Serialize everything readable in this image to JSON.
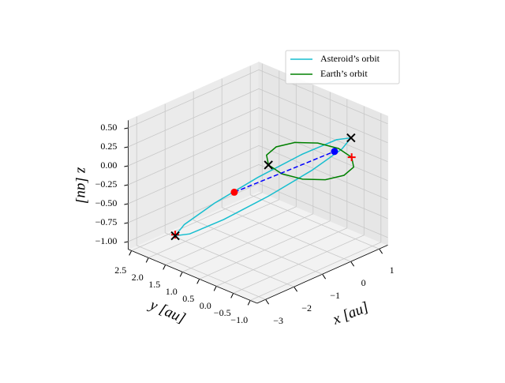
{
  "chart_data": {
    "type": "line3d",
    "xlabel": "x [au]",
    "ylabel": "y [au]",
    "zlabel": "z [au]",
    "xlim": [
      -3.3,
      1.3
    ],
    "ylim": [
      -1.2,
      2.6
    ],
    "zlim": [
      -1.1,
      0.6
    ],
    "xticks": [
      {
        "value": -3,
        "label": "−3"
      },
      {
        "value": -2,
        "label": "−2"
      },
      {
        "value": -1,
        "label": "−1"
      },
      0,
      1
    ],
    "yticks": [
      2.5,
      {
        "value": 2.0,
        "label": "2.0"
      },
      1.5,
      {
        "value": 1.0,
        "label": "1.0"
      },
      0.5,
      {
        "value": 0.0,
        "label": "0.0"
      },
      {
        "value": -0.5,
        "label": "−0.5"
      },
      {
        "value": -1.0,
        "label": "−1.0"
      }
    ],
    "zticks": [
      {
        "value": 0.5,
        "label": "0.50"
      },
      0.25,
      {
        "value": 0.0,
        "label": "0.00"
      },
      {
        "value": -0.25,
        "label": "−0.25"
      },
      {
        "value": -0.5,
        "label": "−0.50"
      },
      {
        "value": -0.75,
        "label": "−0.75"
      },
      {
        "value": -1.0,
        "label": "−1.00"
      }
    ],
    "grid": true,
    "legend": "upper right",
    "series": [
      {
        "name": "Asteroid’s orbit",
        "color": "#17becf",
        "x": [
          0.58,
          0.876,
          0.715,
          0.14,
          -0.695,
          -1.566,
          -2.24,
          -2.536,
          -2.375,
          -1.8,
          -0.965,
          -0.094
        ],
        "y": [
          -0.72,
          -0.046,
          0.825,
          1.66,
          2.235,
          2.396,
          2.1,
          1.426,
          0.555,
          -0.28,
          -0.855,
          -1.016
        ],
        "z": [
          0.345,
          0.145,
          -0.182,
          -0.55,
          -0.858,
          -1.025,
          -1.005,
          -0.805,
          -0.478,
          -0.11,
          0.198,
          0.365
        ]
      },
      {
        "name": "Earth’s orbit",
        "color": "#008000",
        "x": [
          1,
          0.866,
          0.5,
          0,
          -0.5,
          -0.866,
          -1,
          -0.866,
          -0.5,
          0,
          0.5,
          0.866
        ],
        "y": [
          0,
          0.5,
          0.866,
          1,
          0.866,
          0.5,
          0,
          -0.5,
          -0.866,
          -1,
          -0.866,
          -0.5
        ],
        "z": [
          0,
          0,
          0,
          0,
          0,
          0,
          0,
          0,
          0,
          0,
          0,
          0
        ]
      }
    ],
    "segments": [
      {
        "color": "#0000ff",
        "x": [
          -0.4,
          0.5
        ],
        "y": [
          1.9,
          -0.3
        ],
        "z": [
          -0.7,
          0.1
        ]
      }
    ],
    "points": [
      {
        "marker": "plus",
        "color": "#ff0000",
        "x": -2.24,
        "y": 2.1,
        "z": -0.99
      },
      {
        "marker": "plus",
        "color": "#ff0000",
        "x": 0.866,
        "y": -0.5,
        "z": 0
      },
      {
        "marker": "x",
        "color": "#000000",
        "x": -2.24,
        "y": 2.1,
        "z": -1.005
      },
      {
        "marker": "x",
        "color": "#000000",
        "x": 0.58,
        "y": -0.72,
        "z": 0.345
      },
      {
        "marker": "x",
        "color": "#000000",
        "x": -0.87,
        "y": 0.5,
        "z": 0
      },
      {
        "marker": "circle",
        "color": "#ff0000",
        "x": -0.4,
        "y": 1.9,
        "z": -0.7
      },
      {
        "marker": "circle",
        "color": "#0000ff",
        "x": 0.5,
        "y": -0.3,
        "z": 0.1
      }
    ]
  }
}
